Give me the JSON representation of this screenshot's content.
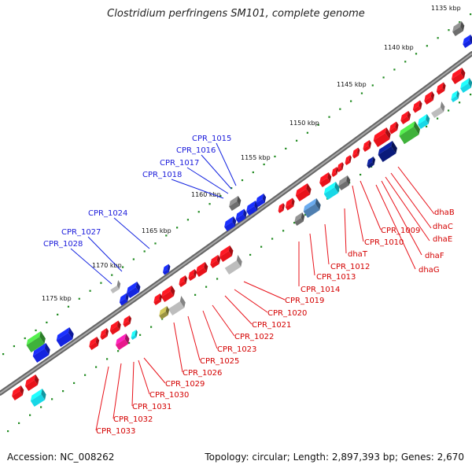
{
  "title": "Clostridium perfringens SM101, complete genome",
  "footer": {
    "accession": "Accession: NC_008262",
    "summary": "Topology: circular; Length: 2,897,393 bp; Genes: 2,670"
  },
  "axis_ticks": [
    "1135 kbp",
    "1140 kbp",
    "1145 kbp",
    "1150 kbp",
    "1155 kbp",
    "1160 kbp",
    "1165 kbp",
    "1170 kbp",
    "1175 kbp"
  ],
  "labels_upper": [
    "CPR_1015",
    "CPR_1016",
    "CPR_1017",
    "CPR_1018",
    "CPR_1024",
    "CPR_1027",
    "CPR_1028"
  ],
  "labels_lower": [
    "dhaB",
    "dhaC",
    "dhaE",
    "dhaF",
    "dhaG",
    "CPR_1009",
    "CPR_1010",
    "dhaT",
    "CPR_1012",
    "CPR_1013",
    "CPR_1014",
    "CPR_1019",
    "CPR_1020",
    "CPR_1021",
    "CPR_1022",
    "CPR_1023",
    "CPR_1025",
    "CPR_1026",
    "CPR_1029",
    "CPR_1030",
    "CPR_1031",
    "CPR_1032",
    "CPR_1033"
  ],
  "colors": {
    "backbone": "#777777",
    "tick_dots": "#1f8a1f",
    "gene_red": "#e8121a",
    "gene_blue": "#1424e0",
    "gene_green": "#3fb23a",
    "gene_cyan": "#18d7e6",
    "gene_navy": "#0a1a7a",
    "gene_gray": "#bdbdbd",
    "gene_darkgray": "#6e6e6e",
    "gene_steel": "#4f7fb0",
    "gene_magenta": "#e8198c",
    "gene_olive": "#9b9442"
  }
}
